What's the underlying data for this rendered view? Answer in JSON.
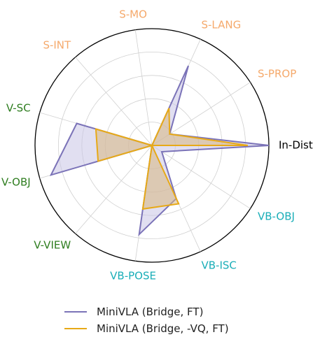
{
  "chart_data": {
    "type": "radar",
    "title": "",
    "categories": [
      "In-Dist",
      "S-PROP",
      "S-LANG",
      "S-MO",
      "S-INT",
      "V-SC",
      "V-OBJ",
      "V-VIEW",
      "VB-POSE",
      "VB-ISC",
      "VB-OBJ"
    ],
    "category_colors": [
      "#000000",
      "#f5a96b",
      "#f5a96b",
      "#f5a96b",
      "#f5a96b",
      "#2e7d1f",
      "#2e7d1f",
      "#2e7d1f",
      "#1aaeb8",
      "#1aaeb8",
      "#1aaeb8"
    ],
    "rlim": [
      0,
      1
    ],
    "radial_gridlines": [
      0.2,
      0.4,
      0.6,
      0.8,
      1.0
    ],
    "grid": true,
    "legend_position": "bottom",
    "series": [
      {
        "name": "MiniVLA (Bridge, FT)",
        "color": "#7b73b8",
        "fill": "#c9c5e6",
        "values": [
          1.0,
          0.18,
          0.75,
          0.0,
          0.0,
          0.67,
          0.9,
          0.0,
          0.77,
          0.5,
          0.1
        ]
      },
      {
        "name": "MiniVLA (Bridge, -VQ, FT)",
        "color": "#e7a917",
        "fill": "#d9b780",
        "values": [
          0.82,
          0.18,
          0.35,
          0.0,
          0.0,
          0.5,
          0.48,
          0.0,
          0.55,
          0.55,
          0.0
        ]
      }
    ]
  }
}
